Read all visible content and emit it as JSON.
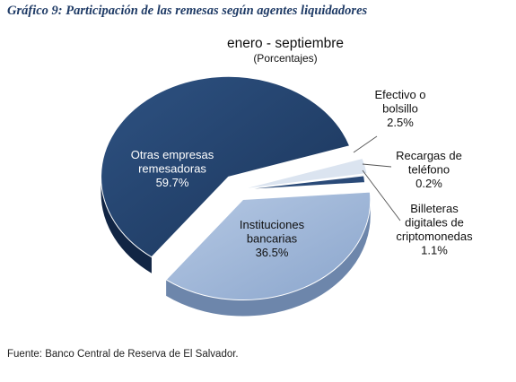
{
  "figure_title": "Gráfico 9: Participación de las remesas según agentes liquidadores",
  "source": "Fuente: Banco Central de Reserva de El Salvador.",
  "chart_data": {
    "type": "pie",
    "title": "enero - septiembre",
    "subtitle": "(Porcentajes)",
    "unit": "%",
    "slices": [
      {
        "lines": [
          "Efectivo o",
          "bolsillo"
        ],
        "value": 2.5,
        "label": "2.5%",
        "color": "#dbe4f0"
      },
      {
        "lines": [
          "Recargas de",
          "teléfono"
        ],
        "value": 0.2,
        "label": "0.2%",
        "color": "#e6ecf5"
      },
      {
        "lines": [
          "Billeteras",
          "digitales de",
          "criptomonedas"
        ],
        "value": 1.1,
        "label": "1.1%",
        "color": "#2a4a78"
      },
      {
        "lines": [
          "Instituciones",
          "bancarias"
        ],
        "value": 36.5,
        "label": "36.5%",
        "color": "#9bb4d6"
      },
      {
        "lines": [
          "Otras empresas",
          "remesadoras"
        ],
        "value": 59.7,
        "label": "59.7%",
        "color": "#22406c"
      }
    ]
  }
}
